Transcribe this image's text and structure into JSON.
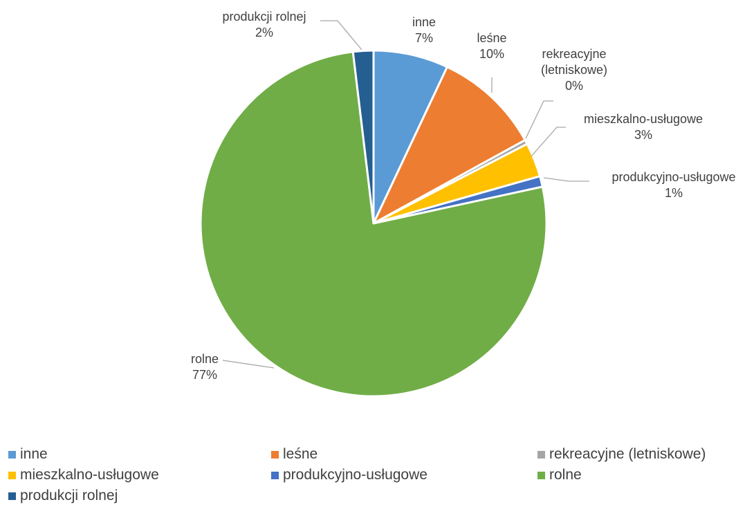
{
  "chart_data": {
    "type": "pie",
    "categories": [
      "inne",
      "leśne",
      "rekreacyjne (letniskowe)",
      "mieszkalno-usługowe",
      "produkcyjno-usługowe",
      "rolne",
      "produkcji rolnej"
    ],
    "values": [
      7.0,
      10.0,
      0.4,
      3.2,
      1.0,
      76.5,
      1.9
    ],
    "colors": [
      "#5B9BD5",
      "#ED7D31",
      "#A5A5A5",
      "#FFC000",
      "#4472C4",
      "#70AD47",
      "#255E91"
    ],
    "data_labels": [
      {
        "lines": [
          "inne",
          "7%"
        ]
      },
      {
        "lines": [
          "leśne",
          "10%"
        ]
      },
      {
        "lines": [
          "rekreacyjne",
          "(letniskowe)",
          "0%"
        ]
      },
      {
        "lines": [
          "mieszkalno-usługowe",
          "3%"
        ]
      },
      {
        "lines": [
          "produkcyjno-usługowe",
          "1%"
        ]
      },
      {
        "lines": [
          "rolne",
          "77%"
        ]
      },
      {
        "lines": [
          "produkcji rolnej",
          "2%"
        ]
      }
    ],
    "legend": {
      "position": "bottom",
      "entries": [
        "inne",
        "leśne",
        "rekreacyjne (letniskowe)",
        "mieszkalno-usługowe",
        "produkcyjno-usługowe",
        "rolne",
        "produkcji rolnej"
      ]
    }
  }
}
